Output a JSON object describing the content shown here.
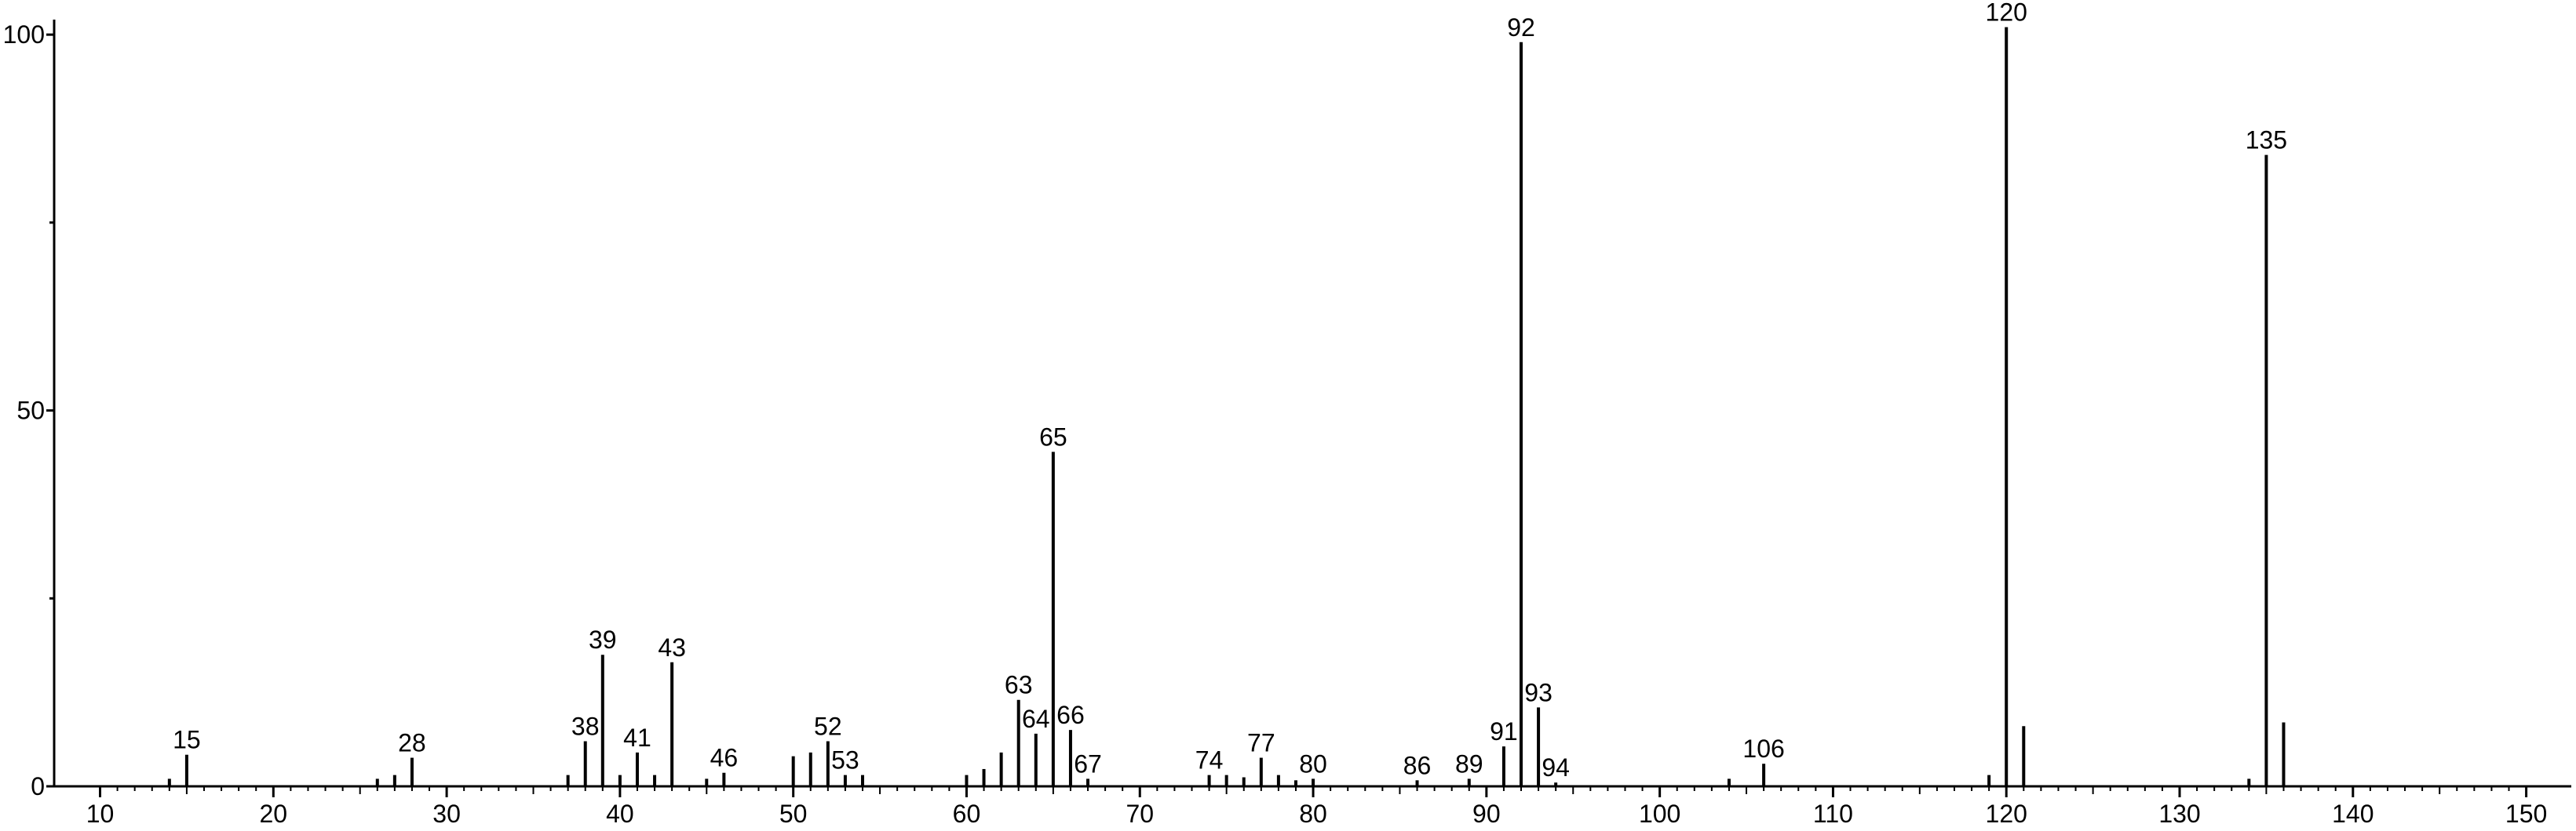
{
  "chart_data": {
    "type": "stem",
    "x": [
      14,
      15,
      26,
      27,
      28,
      37,
      38,
      39,
      40,
      41,
      42,
      43,
      45,
      46,
      50,
      51,
      52,
      53,
      54,
      60,
      61,
      62,
      63,
      64,
      65,
      66,
      67,
      74,
      75,
      76,
      77,
      78,
      79,
      80,
      86,
      89,
      91,
      92,
      93,
      94,
      104,
      106,
      119,
      120,
      121,
      134,
      135,
      136
    ],
    "values": [
      1,
      4.2,
      1,
      1.5,
      3.8,
      1.5,
      6,
      17.5,
      1.5,
      4.5,
      1.5,
      16.5,
      1,
      1.8,
      4,
      4.5,
      6,
      1.5,
      1.5,
      1.5,
      2.3,
      4.5,
      11.5,
      7,
      44.5,
      7.5,
      1,
      1.5,
      1.5,
      1.2,
      3.8,
      1.5,
      0.8,
      1,
      0.8,
      1,
      5.3,
      99,
      10.5,
      0.5,
      1,
      3,
      1.5,
      101,
      8,
      1,
      84,
      8.5
    ],
    "peak_labels": [
      15,
      28,
      38,
      39,
      41,
      43,
      46,
      52,
      53,
      63,
      64,
      65,
      66,
      67,
      74,
      77,
      80,
      86,
      89,
      91,
      92,
      93,
      94,
      106,
      120,
      135
    ],
    "color": "#000000",
    "xlim": [
      7.35,
      152.6
    ],
    "xticks": [
      10,
      20,
      30,
      40,
      50,
      60,
      70,
      80,
      90,
      100,
      110,
      120,
      130,
      140,
      150
    ],
    "ylim": [
      0,
      102
    ],
    "yticks": [
      0,
      50,
      100
    ],
    "yminor_ticks": [
      25,
      75
    ]
  }
}
